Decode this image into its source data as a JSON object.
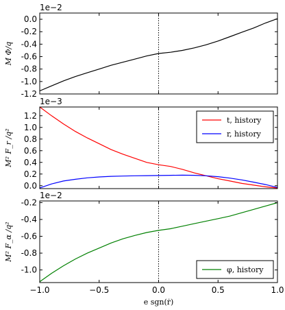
{
  "chart_data": [
    {
      "type": "line",
      "ylabel": "M Φ/q",
      "multiplier": "1e−2",
      "xlim": [
        -1.0,
        1.0
      ],
      "ylim": [
        -1.2,
        0.1
      ],
      "yticks": [
        "-1.2",
        "-1.0",
        "-0.8",
        "-0.6",
        "-0.4",
        "-0.2",
        "0.0"
      ],
      "ytick_values": [
        -1.2,
        -1.0,
        -0.8,
        -0.6,
        -0.4,
        -0.2,
        0.0
      ],
      "vline_x": 0.0,
      "series": [
        {
          "color": "#000000",
          "x": [
            -1.0,
            -0.9,
            -0.8,
            -0.7,
            -0.6,
            -0.5,
            -0.4,
            -0.3,
            -0.2,
            -0.1,
            0.0,
            0.1,
            0.2,
            0.3,
            0.4,
            0.5,
            0.6,
            0.7,
            0.8,
            0.9,
            1.0
          ],
          "y": [
            -1.15,
            -1.07,
            -0.99,
            -0.92,
            -0.86,
            -0.8,
            -0.74,
            -0.69,
            -0.64,
            -0.59,
            -0.55,
            -0.53,
            -0.5,
            -0.46,
            -0.41,
            -0.35,
            -0.28,
            -0.21,
            -0.14,
            -0.06,
            0.01
          ]
        }
      ]
    },
    {
      "type": "line",
      "ylabel": "M² F_r /q²",
      "multiplier": "1e−3",
      "xlim": [
        -1.0,
        1.0
      ],
      "ylim": [
        -0.05,
        1.35
      ],
      "yticks": [
        "0.0",
        "0.2",
        "0.4",
        "0.6",
        "0.8",
        "1.0",
        "1.2"
      ],
      "ytick_values": [
        0.0,
        0.2,
        0.4,
        0.6,
        0.8,
        1.0,
        1.2
      ],
      "vline_x": 0.0,
      "legend_position": "top-right",
      "series": [
        {
          "name": "t, history",
          "color": "#ff0000",
          "x": [
            -1.0,
            -0.9,
            -0.8,
            -0.7,
            -0.6,
            -0.5,
            -0.4,
            -0.3,
            -0.2,
            -0.1,
            0.0,
            0.1,
            0.2,
            0.3,
            0.4,
            0.5,
            0.6,
            0.7,
            0.8,
            0.9,
            1.0
          ],
          "y": [
            1.35,
            1.2,
            1.06,
            0.93,
            0.82,
            0.72,
            0.62,
            0.54,
            0.47,
            0.4,
            0.36,
            0.33,
            0.28,
            0.22,
            0.17,
            0.12,
            0.08,
            0.04,
            0.01,
            -0.02,
            -0.04
          ]
        },
        {
          "name": "r, history",
          "color": "#0000ff",
          "x": [
            -1.0,
            -0.9,
            -0.8,
            -0.7,
            -0.6,
            -0.5,
            -0.4,
            -0.3,
            -0.2,
            -0.1,
            0.0,
            0.1,
            0.2,
            0.3,
            0.4,
            0.5,
            0.6,
            0.7,
            0.8,
            0.9,
            1.0
          ],
          "y": [
            -0.04,
            0.03,
            0.08,
            0.11,
            0.135,
            0.15,
            0.16,
            0.165,
            0.17,
            0.172,
            0.175,
            0.178,
            0.18,
            0.178,
            0.17,
            0.155,
            0.13,
            0.1,
            0.06,
            0.02,
            -0.03
          ]
        }
      ]
    },
    {
      "type": "line",
      "ylabel": "M² F_α /q²",
      "multiplier": "1e−2",
      "xlabel": "e sgn(ṙ)",
      "xlim": [
        -1.0,
        1.0
      ],
      "ylim": [
        -1.15,
        -0.18
      ],
      "xticks": [
        "−1.0",
        "−0.5",
        "0.0",
        "0.5",
        "1.0"
      ],
      "xtick_values": [
        -1.0,
        -0.5,
        0.0,
        0.5,
        1.0
      ],
      "yticks": [
        "-1.0",
        "-0.8",
        "-0.6",
        "-0.4",
        "-0.2"
      ],
      "ytick_values": [
        -1.0,
        -0.8,
        -0.6,
        -0.4,
        -0.2
      ],
      "vline_x": 0.0,
      "legend_position": "bottom-right",
      "series": [
        {
          "name": "φ, history",
          "color": "#008000",
          "x": [
            -1.0,
            -0.9,
            -0.8,
            -0.7,
            -0.6,
            -0.5,
            -0.4,
            -0.3,
            -0.2,
            -0.1,
            0.0,
            0.1,
            0.2,
            0.3,
            0.4,
            0.5,
            0.6,
            0.7,
            0.8,
            0.9,
            1.0
          ],
          "y": [
            -1.14,
            -1.04,
            -0.95,
            -0.87,
            -0.8,
            -0.74,
            -0.68,
            -0.63,
            -0.59,
            -0.555,
            -0.53,
            -0.51,
            -0.48,
            -0.45,
            -0.42,
            -0.39,
            -0.36,
            -0.32,
            -0.28,
            -0.24,
            -0.2
          ]
        }
      ]
    }
  ]
}
